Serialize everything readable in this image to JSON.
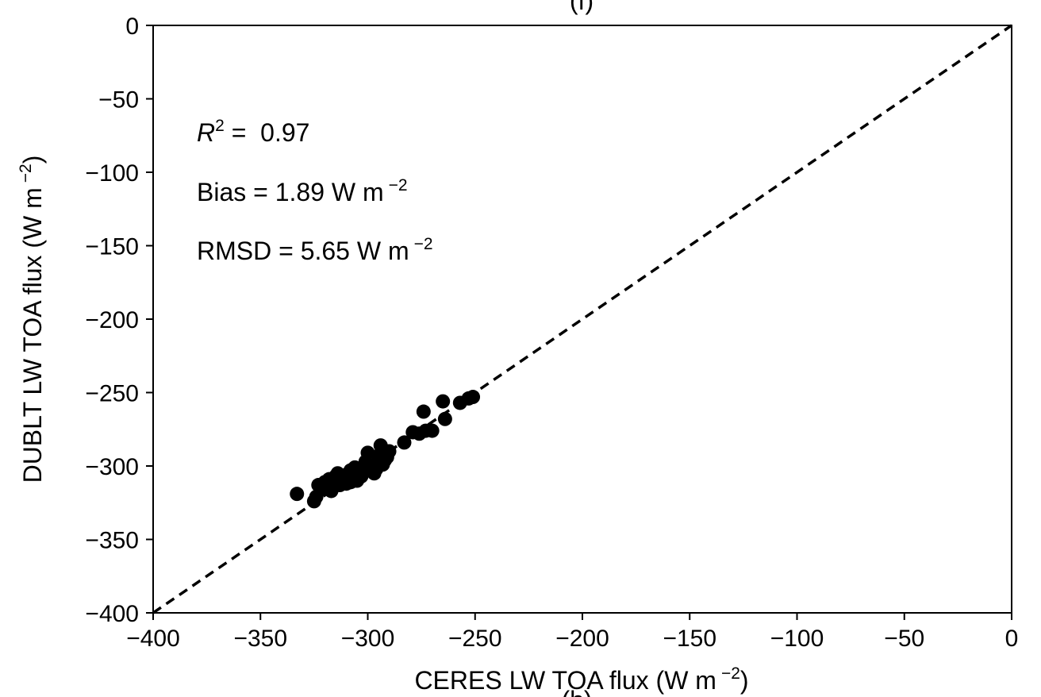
{
  "chart_data": {
    "type": "scatter",
    "title": "(f)",
    "footer_fragment": "(h)",
    "xlabel": "CERES LW TOA flux (W m",
    "xlabel_sup": "−2",
    "xlabel_end": ")",
    "ylabel": "DUBLT LW TOA flux (W m",
    "ylabel_sup": "−2",
    "ylabel_end": ")",
    "xlim": [
      -400,
      0
    ],
    "ylim": [
      -400,
      0
    ],
    "xticks": [
      -400,
      -350,
      -300,
      -250,
      -200,
      -150,
      -100,
      -50,
      0
    ],
    "yticks": [
      -400,
      -350,
      -300,
      -250,
      -200,
      -150,
      -100,
      -50,
      0
    ],
    "xtick_labels": [
      "−400",
      "−350",
      "−300",
      "−250",
      "−200",
      "−150",
      "−100",
      "−50",
      "0"
    ],
    "ytick_labels": [
      "−400",
      "−350",
      "−300",
      "−250",
      "−200",
      "−150",
      "−100",
      "−50",
      "0"
    ],
    "grid": false,
    "reference_line": {
      "type": "1:1",
      "style": "dashed",
      "from": [
        -400,
        -400
      ],
      "to": [
        0,
        0
      ]
    },
    "annotations": {
      "r2_symbol": "R",
      "r2_sup": "2",
      "r2_value": " =  0.97",
      "bias_label": "Bias =  1.89 W m",
      "bias_sup": "−2",
      "rmsd_label": "RMSD =  5.65 W m",
      "rmsd_sup": "−2"
    },
    "marker_color": "#000000",
    "x": [
      -333,
      -325,
      -324,
      -323,
      -322,
      -320,
      -319,
      -318,
      -317,
      -316,
      -315,
      -315,
      -314,
      -313,
      -312,
      -311,
      -310,
      -310,
      -309,
      -308,
      -308,
      -307,
      -306,
      -305,
      -305,
      -304,
      -303,
      -302,
      -301,
      -300,
      -300,
      -298,
      -297,
      -296,
      -295,
      -294,
      -293,
      -292,
      -291,
      -290,
      -283,
      -279,
      -276,
      -274,
      -273,
      -270,
      -265,
      -264,
      -257,
      -253,
      -251
    ],
    "y": [
      -319,
      -324,
      -321,
      -313,
      -316,
      -311,
      -314,
      -309,
      -317,
      -312,
      -307,
      -310,
      -305,
      -313,
      -308,
      -310,
      -312,
      -306,
      -309,
      -303,
      -311,
      -306,
      -301,
      -310,
      -305,
      -308,
      -307,
      -303,
      -297,
      -291,
      -300,
      -300,
      -305,
      -302,
      -293,
      -286,
      -299,
      -296,
      -294,
      -290,
      -284,
      -277,
      -278,
      -263,
      -276,
      -276,
      -256,
      -268,
      -257,
      -254,
      -253
    ]
  }
}
